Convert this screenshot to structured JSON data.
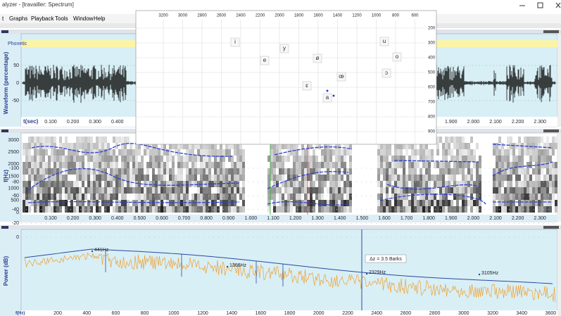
{
  "window": {
    "title": "alyzer - [travailler: Spectrum]"
  },
  "menu": [
    "t",
    "Graphs",
    "Playback",
    "Tools",
    "Window",
    "Help"
  ],
  "waveform": {
    "tier": "Phonetic",
    "y_label": "Waveform (percentage)",
    "y_ticks": [
      "50",
      "0",
      "-50"
    ],
    "x_label": "t(sec)",
    "x_ticks": [
      "0.100",
      "0.200",
      "0.300",
      "0.400",
      "1.900",
      "2.000",
      "2.100",
      "2.200",
      "2.300"
    ]
  },
  "spectrogram": {
    "y_label": "f(Hz)",
    "y_ticks": [
      "3000",
      "2500",
      "2000",
      "1500",
      "1000",
      "500",
      "0"
    ],
    "x_ticks": [
      "0.100",
      "0.200",
      "0.300",
      "0.400",
      "0.500",
      "0.600",
      "0.700",
      "0.800",
      "0.900",
      "1.000",
      "1.100",
      "1.200",
      "1.300",
      "1.400",
      "1.500",
      "1.600",
      "1.700",
      "1.800",
      "1.900",
      "2.000",
      "2.100",
      "2.200",
      "2.300"
    ]
  },
  "spectrum": {
    "y_label": "Power (dB)",
    "y_ticks": [
      "0",
      "-20",
      "-40",
      "-60",
      "-80",
      "-100"
    ],
    "x_label": "f(Hz)",
    "x_ticks": [
      "200",
      "400",
      "600",
      "800",
      "1000",
      "1200",
      "1400",
      "1600",
      "1800",
      "2000",
      "2200",
      "2400",
      "2600",
      "2800",
      "3000",
      "3200",
      "3400",
      "3600"
    ],
    "annotations": [
      "441Hz",
      "1366Hz",
      "2329Hz",
      "3105Hz"
    ],
    "delta": "Δz = 3.5 Barks"
  },
  "vowel_chart": {
    "f2_ticks": [
      "3200",
      "3000",
      "2800",
      "2600",
      "2400",
      "2200",
      "2000",
      "1800",
      "1600",
      "1400",
      "1200",
      "1000",
      "800",
      "600"
    ],
    "f1_ticks": [
      "200",
      "300",
      "400",
      "500",
      "600",
      "700",
      "800",
      "900"
    ],
    "vowels": [
      "i",
      "e",
      "y",
      "ø",
      "u",
      "o",
      "œ",
      "ɔ",
      "ɛ",
      "a"
    ]
  }
}
